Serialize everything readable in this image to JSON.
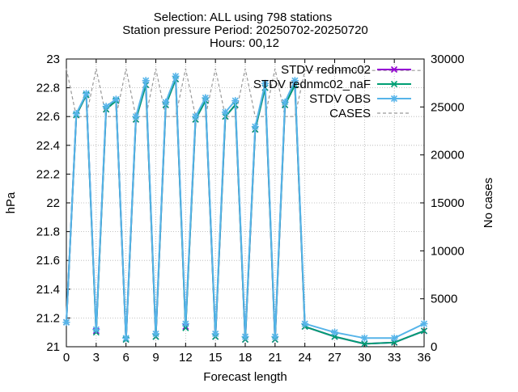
{
  "chart_data": {
    "type": "line",
    "title_lines": [
      "Selection: ALL using   798 stations",
      "Station pressure   Period: 20250702-20250720",
      "Hours: 00,12"
    ],
    "xlabel": "Forecast length",
    "ylabel": "hPa",
    "y2label": "No cases",
    "xlim": [
      0,
      36
    ],
    "ylim": [
      21,
      23
    ],
    "y2lim": [
      0,
      30000
    ],
    "x_ticks": [
      0,
      3,
      6,
      9,
      12,
      15,
      18,
      21,
      24,
      27,
      30,
      33,
      36
    ],
    "y_ticks": [
      "21",
      "21.2",
      "21.4",
      "21.6",
      "21.8",
      "22",
      "22.2",
      "22.4",
      "22.6",
      "22.8",
      "23"
    ],
    "y2_ticks": [
      "0",
      "5000",
      "10000",
      "15000",
      "20000",
      "25000",
      "30000"
    ],
    "grid": true,
    "legend_position": "top-right",
    "x": [
      0,
      1,
      2,
      3,
      4,
      5,
      6,
      7,
      8,
      9,
      10,
      11,
      12,
      13,
      14,
      15,
      16,
      17,
      18,
      19,
      20,
      21,
      22,
      23,
      24,
      27,
      30,
      33,
      36
    ],
    "series": [
      {
        "name": "STDV rednmc02",
        "color": "#9400d3",
        "marker": "x",
        "axis": "left",
        "values": [
          21.17,
          22.61,
          22.75,
          21.11,
          22.65,
          22.71,
          21.05,
          22.58,
          22.82,
          21.07,
          22.68,
          22.86,
          21.14,
          22.58,
          22.71,
          21.07,
          22.6,
          22.68,
          21.05,
          22.51,
          22.8,
          21.05,
          22.68,
          22.82,
          21.14,
          21.07,
          21.02,
          21.03,
          21.11
        ]
      },
      {
        "name": "STDV rednmc02_naF",
        "color": "#009e73",
        "marker": "x",
        "axis": "left",
        "values": [
          21.17,
          22.61,
          22.75,
          21.1,
          22.65,
          22.71,
          21.05,
          22.58,
          22.82,
          21.07,
          22.68,
          22.86,
          21.13,
          22.58,
          22.71,
          21.07,
          22.6,
          22.68,
          21.05,
          22.51,
          22.8,
          21.05,
          22.68,
          22.82,
          21.14,
          21.07,
          21.02,
          21.03,
          21.11
        ]
      },
      {
        "name": "STDV OBS",
        "color": "#56b4e9",
        "marker": "asterisk",
        "axis": "left",
        "values": [
          21.17,
          22.62,
          22.76,
          21.12,
          22.67,
          22.72,
          21.06,
          22.6,
          22.85,
          21.09,
          22.7,
          22.88,
          21.16,
          22.6,
          22.73,
          21.09,
          22.63,
          22.71,
          21.07,
          22.53,
          22.83,
          21.07,
          22.7,
          22.85,
          21.16,
          21.1,
          21.06,
          21.06,
          21.16
        ]
      },
      {
        "name": "CASES",
        "color": "#999999",
        "dashed": true,
        "axis": "right",
        "values": [
          29000,
          24000,
          24000,
          29000,
          24000,
          24000,
          29000,
          24000,
          24000,
          29000,
          24000,
          24000,
          29000,
          24000,
          24000,
          29000,
          24000,
          24000,
          29000,
          24000,
          24000,
          29000,
          24000,
          24000,
          28800,
          28800,
          28800,
          28800,
          28800
        ]
      }
    ]
  }
}
